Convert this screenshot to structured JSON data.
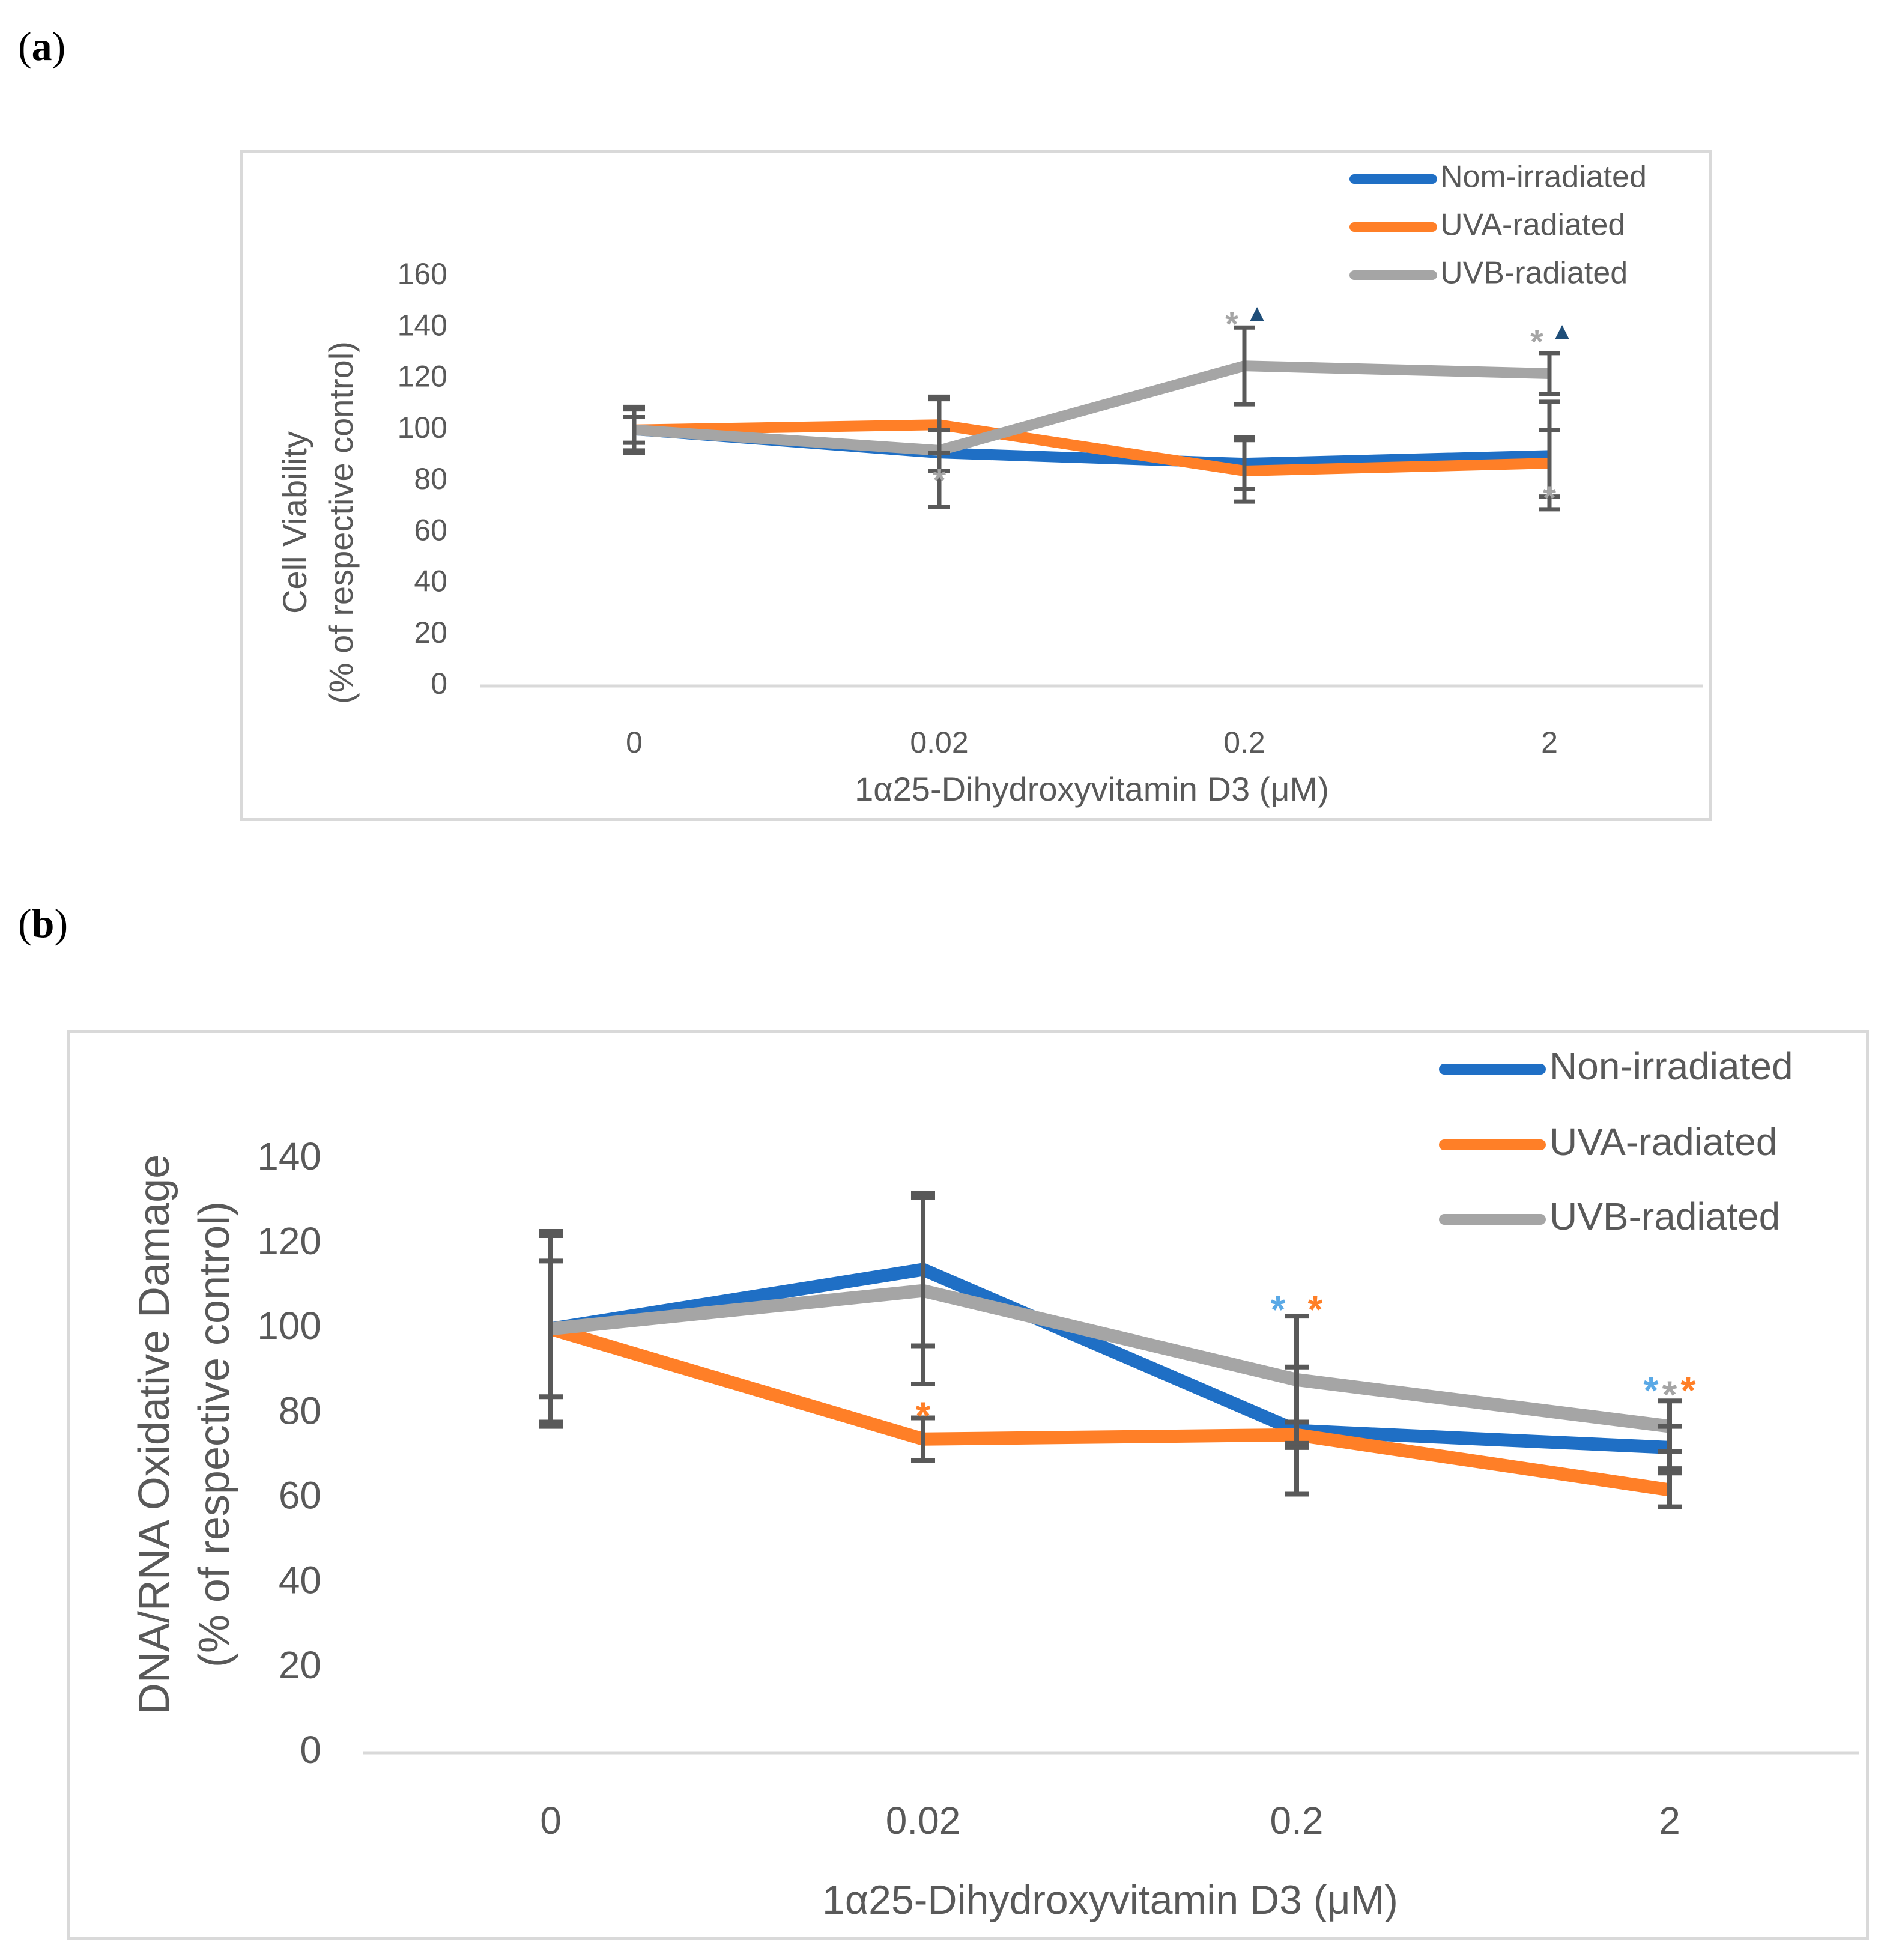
{
  "panels": [
    {
      "label": "a"
    },
    {
      "label": "b"
    }
  ],
  "chart_data": [
    {
      "type": "line",
      "panel": "a",
      "title": "",
      "xlabel": "1α25-Dihydroxyvitamin D3 (μM)",
      "ylabel": [
        "Cell Viability",
        "(% of respective control)"
      ],
      "categories": [
        "0",
        "0.02",
        "0.2",
        "2"
      ],
      "ylim": [
        0,
        160
      ],
      "yticks": [
        0,
        20,
        40,
        60,
        80,
        100,
        120,
        140,
        160
      ],
      "grid": false,
      "legend_position": "top-right",
      "series": [
        {
          "name": "Nom-irradiated",
          "color": "#1f6fc5",
          "values": [
            100,
            91,
            87,
            90
          ],
          "errors": [
            8,
            21,
            10,
            21
          ]
        },
        {
          "name": "UVA-radiated",
          "color": "#ff7f27",
          "values": [
            100,
            102,
            84,
            87
          ],
          "errors": [
            9,
            11,
            12,
            13
          ]
        },
        {
          "name": "UVB-radiated",
          "color": "#a5a5a5",
          "values": [
            100,
            92,
            125,
            122
          ],
          "errors": [
            5,
            8,
            15,
            8
          ]
        }
      ],
      "annotations": [
        {
          "text": "*",
          "category": "0.02",
          "color": "#a5a5a5",
          "y": 84
        },
        {
          "text": "*",
          "category": "0.2",
          "color": "#a5a5a5",
          "y": 145
        },
        {
          "text": "▲",
          "category": "0.2",
          "color": "#1f4e79",
          "y": 145
        },
        {
          "text": "*",
          "category": "2",
          "color": "#a5a5a5",
          "y": 138
        },
        {
          "text": "▲",
          "category": "2",
          "color": "#1f4e79",
          "y": 138
        },
        {
          "text": "*",
          "category": "2",
          "color": "#a5a5a5",
          "y": 77
        }
      ]
    },
    {
      "type": "line",
      "panel": "b",
      "title": "",
      "xlabel": "1α25-Dihydroxyvitamin D3 (μM)",
      "ylabel": [
        "DNA/RNA Oxidative Damage",
        "(% of respective control)"
      ],
      "categories": [
        "0",
        "0.02",
        "0.2",
        "2"
      ],
      "ylim": [
        0,
        140
      ],
      "yticks": [
        0,
        20,
        40,
        60,
        80,
        100,
        120,
        140
      ],
      "grid": false,
      "legend_position": "top-right",
      "series": [
        {
          "name": "Non-irradiated",
          "color": "#1f6fc5",
          "values": [
            100,
            114,
            76,
            72
          ],
          "errors": [
            22,
            18,
            15,
            5
          ]
        },
        {
          "name": "UVA-radiated",
          "color": "#ff7f27",
          "values": [
            100,
            74,
            75,
            62
          ],
          "errors": [
            23,
            5,
            3,
            4
          ]
        },
        {
          "name": "UVB-radiated",
          "color": "#a5a5a5",
          "values": [
            100,
            109,
            88,
            77
          ],
          "errors": [
            16,
            22,
            15,
            6
          ]
        }
      ],
      "annotations": [
        {
          "text": "*",
          "category": "0.02",
          "color": "#ff7f27",
          "y": 82
        },
        {
          "text": "*",
          "category": "0.2",
          "color": "#5aa9e6",
          "y": 107
        },
        {
          "text": "*",
          "category": "0.2",
          "color": "#ff7f27",
          "y": 107
        },
        {
          "text": "*",
          "category": "2",
          "color": "#5aa9e6",
          "y": 88
        },
        {
          "text": "*",
          "category": "2",
          "color": "#ff7f27",
          "y": 88
        },
        {
          "text": "*",
          "category": "2",
          "color": "#a5a5a5",
          "y": 87
        }
      ]
    }
  ]
}
